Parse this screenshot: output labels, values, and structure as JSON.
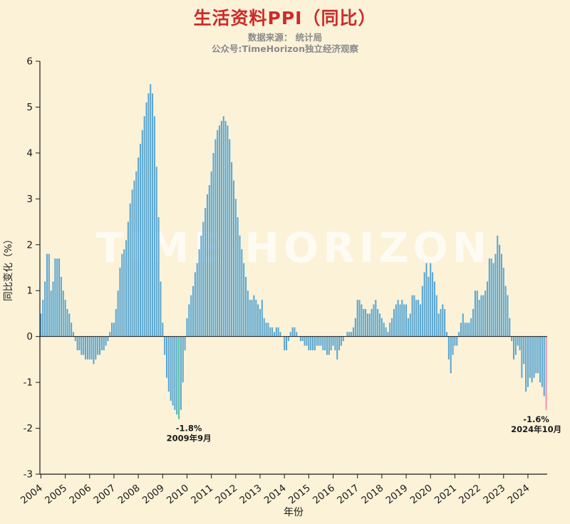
{
  "header": {
    "title": "生活资料PPI（同比）",
    "source": "数据来源： 统计局",
    "account": "公众号:TimeHorizon独立经济观察"
  },
  "watermark": {
    "text": "TIME HORIZON",
    "color": "rgba(255,255,255,0.68)"
  },
  "chart_data": {
    "type": "bar",
    "title": "生活资料PPI（同比）",
    "xlabel": "年份",
    "ylabel": "同比变化（%）",
    "ylim": [
      -3,
      6
    ],
    "yticks": [
      -3,
      -2,
      -1,
      0,
      1,
      2,
      3,
      4,
      5,
      6
    ],
    "grid": false,
    "legend": "none",
    "bar_color": "#5ba7d1",
    "start": {
      "year": 2004,
      "month": 1
    },
    "end": {
      "year": 2024,
      "month": 10
    },
    "x_tick_years": [
      2004,
      2005,
      2006,
      2007,
      2008,
      2009,
      2010,
      2011,
      2012,
      2013,
      2014,
      2015,
      2016,
      2017,
      2018,
      2019,
      2020,
      2021,
      2022,
      2023,
      2024
    ],
    "values": [
      0.5,
      0.8,
      1.2,
      1.8,
      1.8,
      1.0,
      1.2,
      1.7,
      1.7,
      1.7,
      1.3,
      1.0,
      0.8,
      0.6,
      0.5,
      0.3,
      0.1,
      -0.1,
      -0.3,
      -0.3,
      -0.4,
      -0.4,
      -0.5,
      -0.5,
      -0.5,
      -0.5,
      -0.6,
      -0.5,
      -0.4,
      -0.4,
      -0.3,
      -0.3,
      -0.2,
      -0.1,
      0.1,
      0.3,
      0.3,
      0.6,
      1.0,
      1.5,
      1.8,
      1.9,
      2.1,
      2.5,
      2.9,
      3.2,
      3.4,
      3.6,
      3.9,
      4.2,
      4.5,
      4.8,
      5.1,
      5.3,
      5.5,
      5.3,
      4.8,
      3.7,
      2.6,
      1.2,
      0.3,
      -0.4,
      -0.9,
      -1.2,
      -1.4,
      -1.5,
      -1.6,
      -1.7,
      -1.8,
      -1.6,
      -1.0,
      -0.3,
      0.4,
      0.7,
      0.9,
      1.1,
      1.4,
      1.6,
      1.9,
      2.2,
      2.5,
      2.8,
      3.1,
      3.3,
      3.6,
      4.0,
      4.3,
      4.5,
      4.6,
      4.7,
      4.8,
      4.7,
      4.6,
      4.3,
      3.8,
      3.4,
      3.0,
      2.6,
      2.2,
      1.9,
      1.6,
      1.3,
      1.0,
      0.8,
      0.8,
      0.9,
      0.8,
      0.7,
      0.6,
      0.8,
      0.4,
      0.3,
      0.3,
      0.2,
      0.2,
      0.1,
      0.2,
      0.2,
      0.1,
      0.0,
      -0.3,
      -0.3,
      -0.1,
      0.1,
      0.2,
      0.2,
      0.1,
      0.0,
      -0.1,
      -0.1,
      -0.2,
      -0.2,
      -0.3,
      -0.3,
      -0.3,
      -0.3,
      -0.2,
      -0.2,
      -0.2,
      -0.3,
      -0.3,
      -0.4,
      -0.4,
      -0.3,
      -0.2,
      -0.3,
      -0.5,
      -0.3,
      -0.2,
      -0.1,
      0.0,
      0.1,
      0.1,
      0.1,
      0.2,
      0.4,
      0.8,
      0.8,
      0.7,
      0.6,
      0.6,
      0.5,
      0.5,
      0.6,
      0.7,
      0.8,
      0.6,
      0.5,
      0.4,
      0.3,
      0.2,
      0.1,
      0.3,
      0.4,
      0.6,
      0.7,
      0.8,
      0.7,
      0.8,
      0.7,
      0.7,
      0.4,
      0.5,
      0.9,
      0.9,
      0.8,
      0.8,
      0.7,
      1.1,
      1.4,
      1.6,
      1.3,
      1.6,
      1.4,
      1.2,
      0.9,
      0.5,
      0.6,
      0.7,
      0.6,
      0.1,
      -0.5,
      -0.8,
      -0.4,
      -0.2,
      -0.2,
      0.1,
      0.3,
      0.5,
      0.3,
      0.3,
      0.3,
      0.4,
      0.6,
      1.0,
      1.0,
      0.8,
      0.9,
      0.9,
      1.0,
      1.2,
      1.7,
      1.7,
      1.6,
      1.8,
      2.2,
      2.0,
      1.8,
      1.5,
      1.1,
      0.9,
      0.4,
      -0.1,
      -0.5,
      -0.4,
      -0.2,
      -0.3,
      -0.9,
      -0.6,
      -1.2,
      -1.1,
      -0.9,
      -1.0,
      -0.9,
      -0.8,
      -0.8,
      -1.0,
      -1.1,
      -1.3,
      -1.6
    ],
    "highlights": [
      {
        "index": 68,
        "color": "#4fc3a1",
        "label": "-1.8%",
        "sublabel": "2009年9月",
        "dx": 14
      },
      {
        "index": 249,
        "color": "#f291b2",
        "label": "-1.6%",
        "sublabel": "2024年10月",
        "dx": -14
      }
    ]
  }
}
